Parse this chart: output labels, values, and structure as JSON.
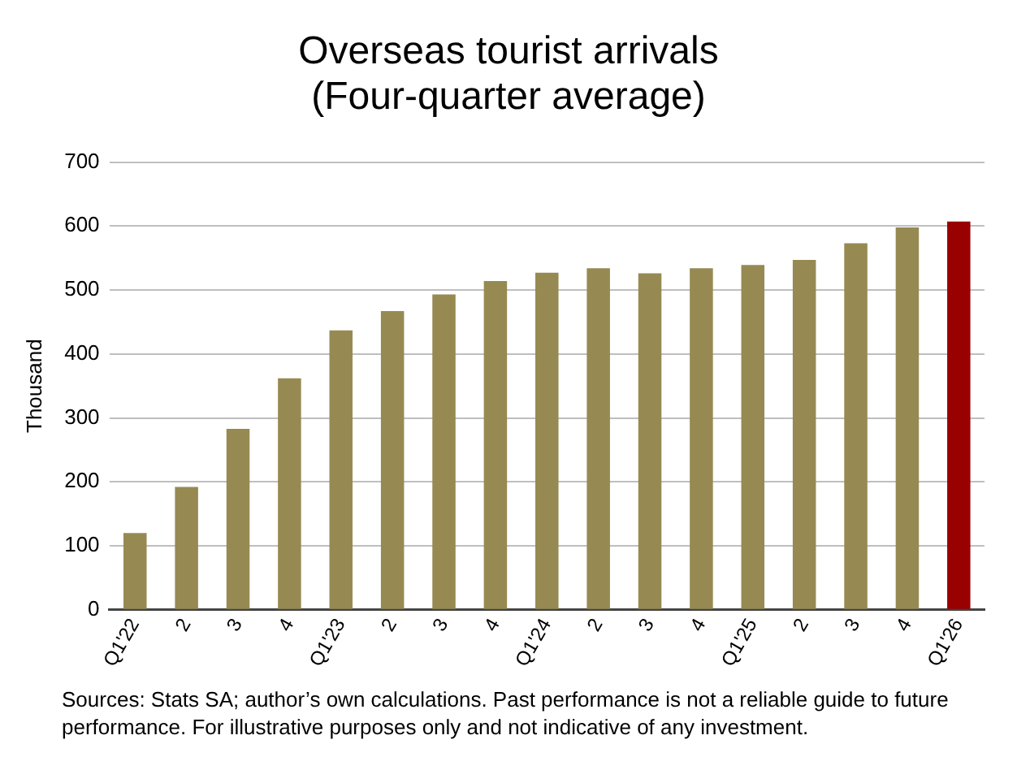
{
  "chart_data": {
    "type": "bar",
    "title": "Overseas tourist arrivals",
    "subtitle": "(Four-quarter average)",
    "ylabel": "Thousand",
    "categories": [
      "Q1'22",
      "2",
      "3",
      "4",
      "Q1'23",
      "2",
      "3",
      "4",
      "Q1'24",
      "2",
      "3",
      "4",
      "Q1'25",
      "2",
      "3",
      "4",
      "Q1'26"
    ],
    "values": [
      120,
      192,
      283,
      362,
      437,
      467,
      493,
      514,
      527,
      534,
      526,
      534,
      539,
      547,
      573,
      598,
      607
    ],
    "colors": [
      "#968a52",
      "#968a52",
      "#968a52",
      "#968a52",
      "#968a52",
      "#968a52",
      "#968a52",
      "#968a52",
      "#968a52",
      "#968a52",
      "#968a52",
      "#968a52",
      "#968a52",
      "#968a52",
      "#968a52",
      "#968a52",
      "#990000"
    ],
    "ylim": [
      0,
      700
    ],
    "yticks": [
      0,
      100,
      200,
      300,
      400,
      500,
      600,
      700
    ],
    "grid": "y",
    "legend": false,
    "annotations": [
      "Sources: Stats SA; author’s own calculations. Past performance is not a reliable guide to future performance. For illustrative purposes only and not indicative of any investment."
    ]
  }
}
